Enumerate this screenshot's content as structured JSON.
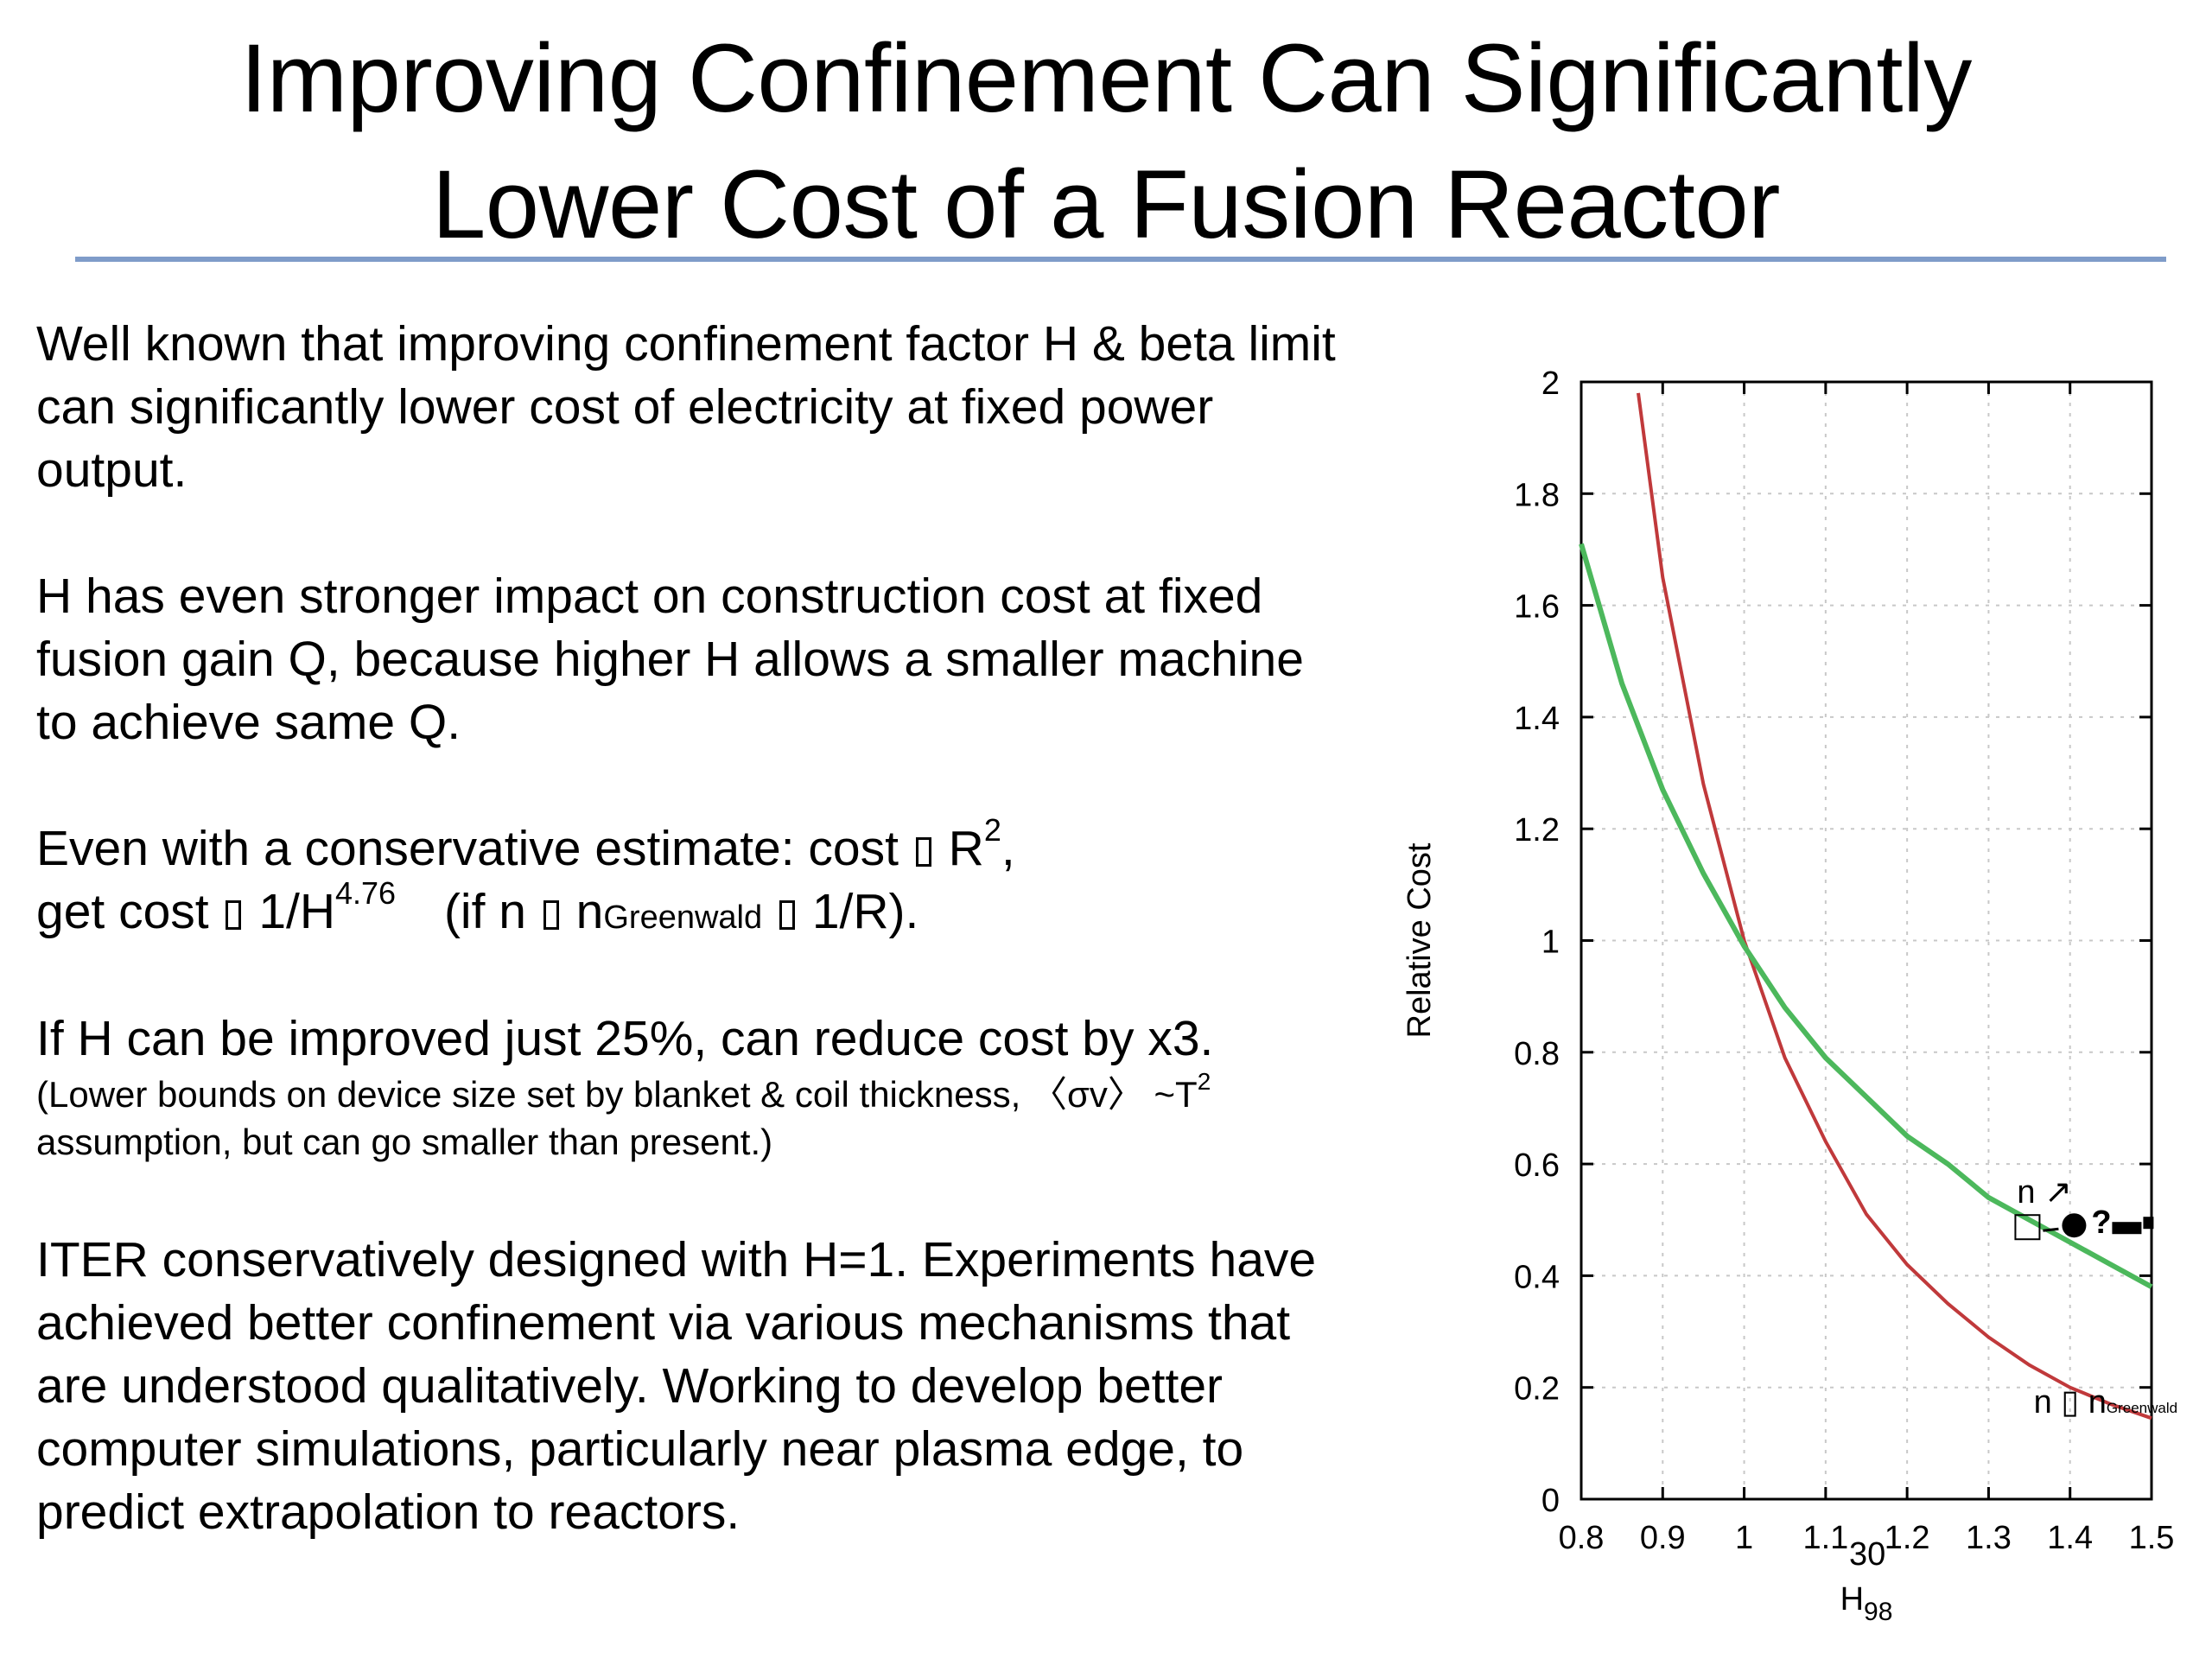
{
  "slide": {
    "title_line1": "Improving Confinement Can Significantly",
    "title_line2": "Lower Cost of a Fusion Reactor",
    "page_number": "30"
  },
  "body": {
    "p1": "Well known that improving confinement factor H & beta limit can significantly lower cost of electricity at fixed power output.",
    "p2": "H has even stronger impact on construction cost at fixed fusion gain Q, because higher H allows a smaller machine to achieve same Q.",
    "p3_line1_a": "Even with a conservative estimate: cost",
    "p3_line1_b": "R",
    "p3_line1_sup": "2",
    "p3_line1_c": ",",
    "p3_line2_a": "get cost",
    "p3_line2_b": "1/H",
    "p3_line2_sup": "4.76",
    "p3_line2_c": "(if n",
    "p3_line2_d": "n",
    "p3_line2_sub": "Greenwald",
    "p3_line2_e": "1/R).",
    "p4": "If H can be improved just 25%, can reduce cost by x3.",
    "p4_note_a": "(Lower bounds on device size set by blanket & coil thickness, 〈σv〉 ~T",
    "p4_note_sup": "2",
    "p4_note_b": "assumption, but can go smaller than present.)",
    "p5": "ITER conservatively designed with H=1.  Experiments have achieved better confinement via various mechanisms that are understood qualitatively.  Working to develop better computer simulations, particularly near plasma edge, to predict extrapolation to reactors."
  },
  "chart_data": {
    "type": "line",
    "xlabel": "H98",
    "ylabel": "Relative Cost",
    "xlim": [
      0.8,
      1.5
    ],
    "ylim": [
      0,
      2
    ],
    "x_ticks": [
      "0.8",
      "0.9",
      "1",
      "1.1",
      "1.2",
      "1.3",
      "1.4",
      "1.5"
    ],
    "y_ticks": [
      "0",
      "0.2",
      "0.4",
      "0.6",
      "0.8",
      "1",
      "1.2",
      "1.4",
      "1.6",
      "1.8",
      "2"
    ],
    "grid": true,
    "series": [
      {
        "label": "n ∝ nGreenwald",
        "color": "#c0393b",
        "x": [
          0.87,
          0.9,
          0.95,
          1.0,
          1.05,
          1.1,
          1.15,
          1.2,
          1.25,
          1.3,
          1.35,
          1.4,
          1.45,
          1.5
        ],
        "y": [
          1.98,
          1.65,
          1.28,
          1.0,
          0.79,
          0.64,
          0.51,
          0.42,
          0.35,
          0.29,
          0.24,
          0.2,
          0.17,
          0.145
        ]
      },
      {
        "label": "n ∝ …",
        "color": "#4cb85c",
        "x": [
          0.8,
          0.85,
          0.9,
          0.95,
          1.0,
          1.05,
          1.1,
          1.15,
          1.2,
          1.25,
          1.3,
          1.35,
          1.4,
          1.45,
          1.5
        ],
        "y": [
          1.71,
          1.46,
          1.27,
          1.12,
          0.99,
          0.88,
          0.79,
          0.72,
          0.65,
          0.6,
          0.54,
          0.5,
          0.46,
          0.42,
          0.38
        ]
      }
    ],
    "annotations": {
      "red_label_prefix": "n",
      "red_label_main": "n",
      "red_label_sub": "Greenwald",
      "green_label_top": "n",
      "green_label_marks": "?"
    }
  }
}
